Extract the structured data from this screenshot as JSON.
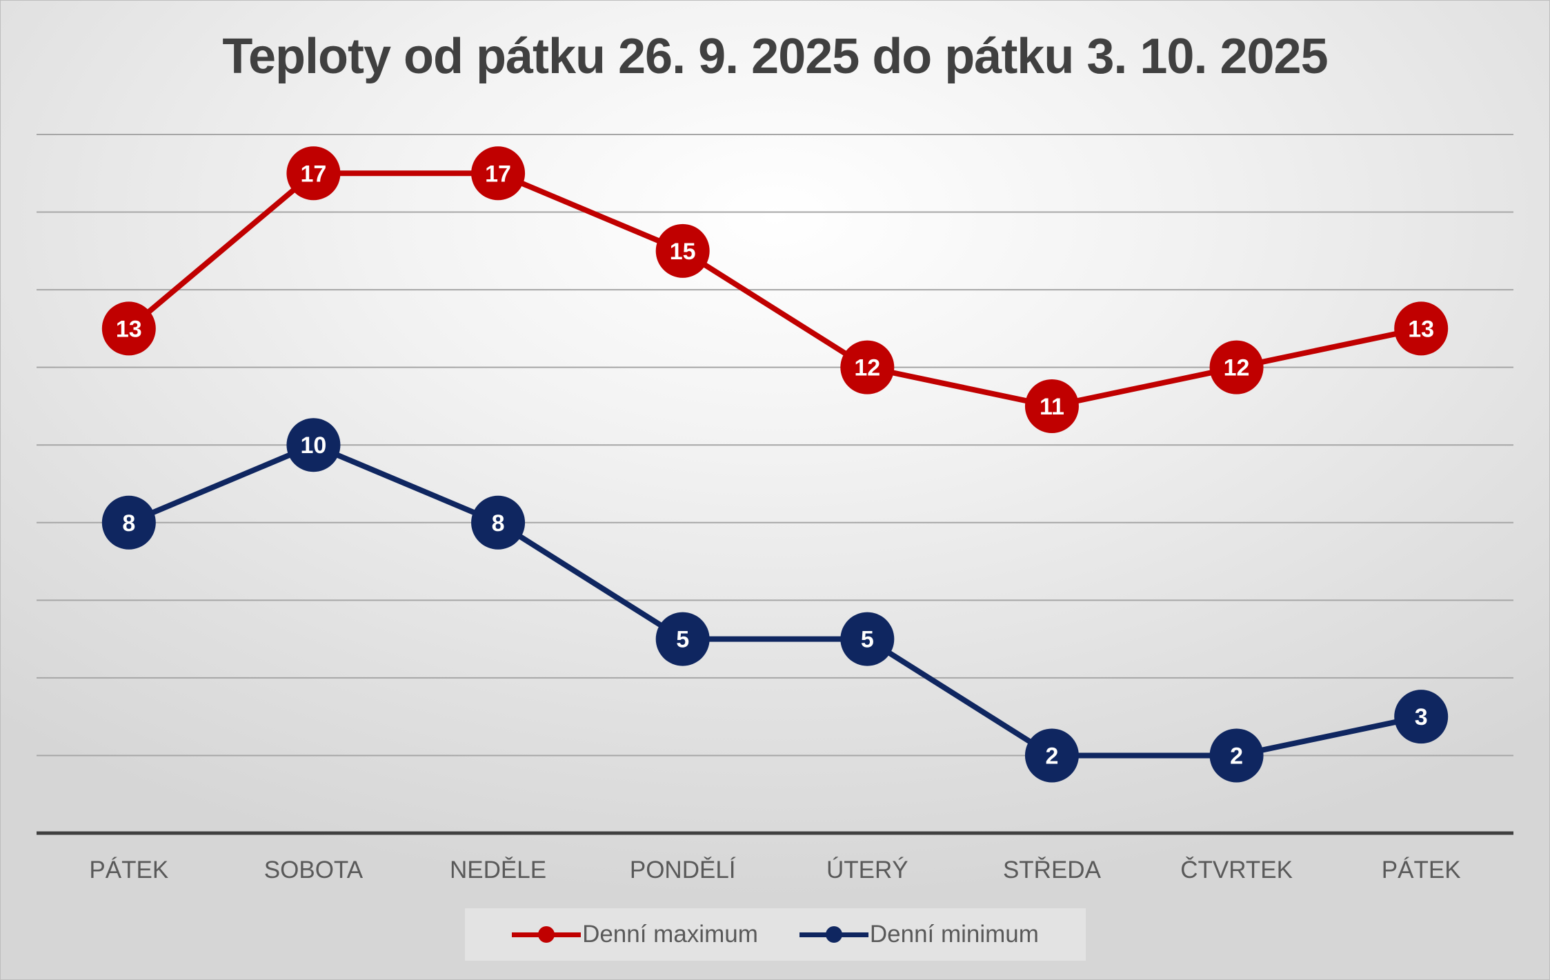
{
  "chart_data": {
    "type": "line",
    "title": "Teploty od pátku 26. 9. 2025 do pátku 3. 10. 2025",
    "categories": [
      "PÁTEK",
      "SOBOTA",
      "NEDĚLE",
      "PONDĚLÍ",
      "ÚTERÝ",
      "STŘEDA",
      "ČTVRTEK",
      "PÁTEK"
    ],
    "series": [
      {
        "name": "Denní maximum",
        "color": "#c00000",
        "values": [
          13,
          17,
          17,
          15,
          12,
          11,
          12,
          13
        ]
      },
      {
        "name": "Denní minimum",
        "color": "#0f2660",
        "values": [
          8,
          10,
          8,
          5,
          5,
          2,
          2,
          3
        ]
      }
    ],
    "ylim": [
      0,
      18
    ],
    "grid": true,
    "data_labels": true,
    "legend_position": "bottom"
  }
}
